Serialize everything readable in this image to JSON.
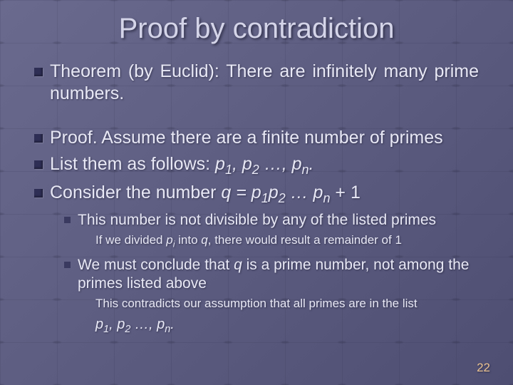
{
  "title": "Proof by contradiction",
  "line1": "Theorem (by Euclid): There are infinitely many prime numbers.",
  "line2": "Proof. Assume there are a finite number of primes",
  "line3_pre": "List them as follows: ",
  "line3_seq": "p₁, p₂ …, pₙ.",
  "line4_pre": "Consider the number ",
  "line4_mid": "q = p₁p₂ … pₙ",
  "line4_post": " + 1",
  "sub1": "This number is not divisible by any of the listed primes",
  "subsub1_pre": "If we divided ",
  "subsub1_pi": "pᵢ ",
  "subsub1_mid": "into ",
  "subsub1_q": "q",
  "subsub1_post": ", there would result a remainder of 1",
  "sub2_pre": "We must conclude that ",
  "sub2_q": "q",
  "sub2_post": " is a prime number, not among the primes listed above",
  "subsub2": "This contradicts our assumption that all primes are in the list",
  "seq_final": "p₁, p₂ …, pₙ.",
  "page_number": "22",
  "colors": {
    "bg_grad_start": "#6a6a8e",
    "bg_grad_end": "#4e4e72",
    "text": "#e8e8f5",
    "title": "#d4d4e8",
    "bullet": "#2e2e55",
    "pagenum": "#e8c090"
  },
  "typography": {
    "title_fontsize": 40,
    "level1_fontsize": 25,
    "level2_fontsize": 21,
    "level3_fontsize": 17,
    "font_family": "Arial"
  },
  "structure_type": "slide"
}
